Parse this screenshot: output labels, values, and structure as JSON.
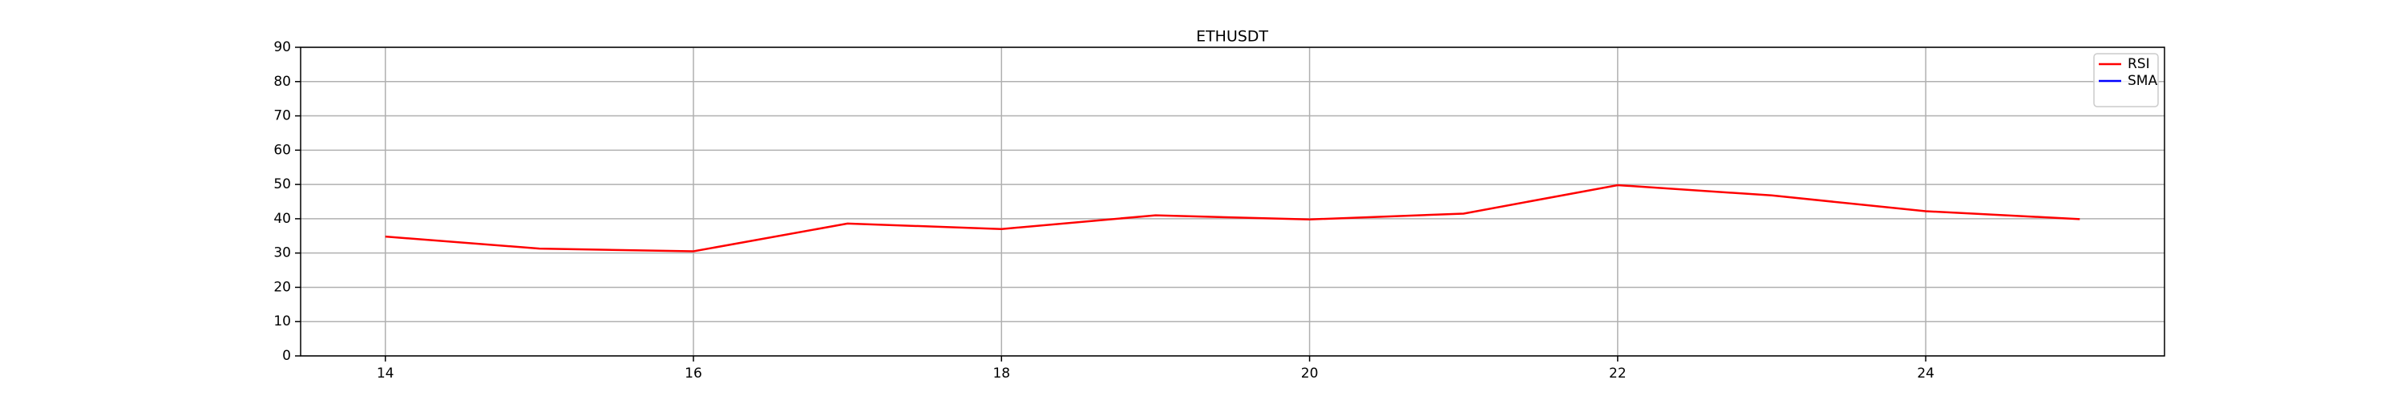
{
  "chart_data": {
    "type": "line",
    "title": "ETHUSDT",
    "x": [
      14,
      15,
      16,
      17,
      18,
      19,
      20,
      21,
      22,
      23,
      24,
      25
    ],
    "series": [
      {
        "name": "RSI",
        "color": "#ff0000",
        "values": [
          34.8,
          31.3,
          30.5,
          38.6,
          37.0,
          41.0,
          39.8,
          41.5,
          49.8,
          46.8,
          42.2,
          39.9
        ]
      },
      {
        "name": "SMA",
        "color": "#0000ff",
        "values": [
          null,
          null,
          null,
          null,
          null,
          null,
          null,
          null,
          null,
          null,
          null,
          null
        ]
      }
    ],
    "xlim": [
      13.45,
      25.55
    ],
    "xticks": [
      14,
      16,
      18,
      20,
      22,
      24
    ],
    "ylim": [
      0,
      90
    ],
    "yticks": [
      0,
      10,
      20,
      30,
      40,
      50,
      60,
      70,
      80,
      90
    ],
    "grid": true,
    "legend": "upper right"
  }
}
